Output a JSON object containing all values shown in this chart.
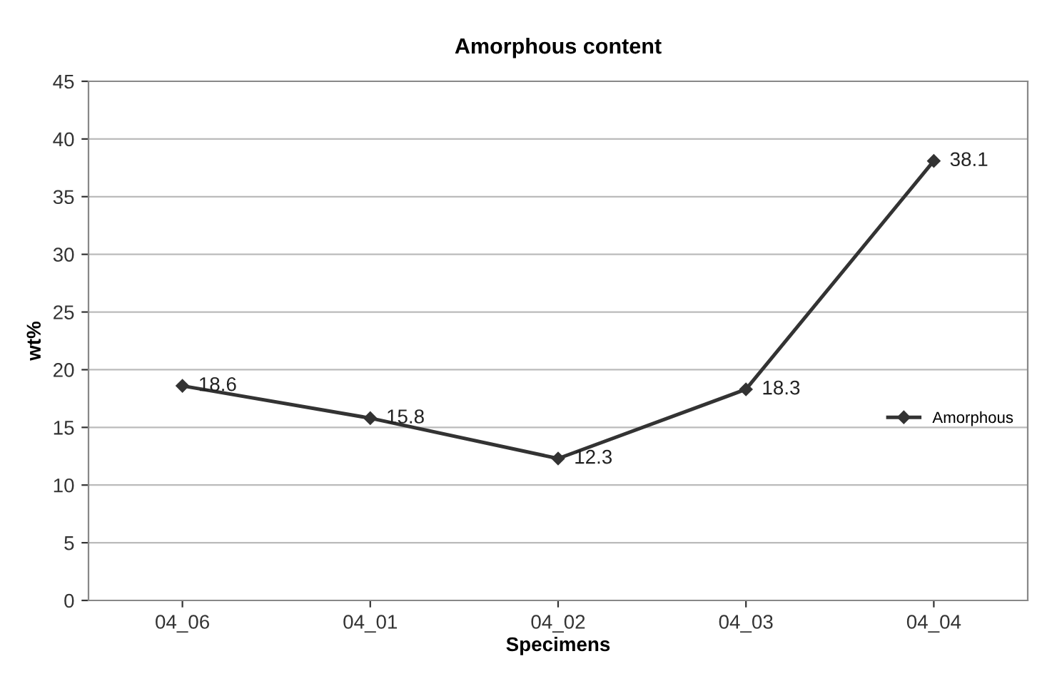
{
  "chart_data": {
    "type": "line",
    "title": "Amorphous content",
    "xlabel": "Specimens",
    "ylabel": "wt%",
    "categories": [
      "04_06",
      "04_01",
      "04_02",
      "04_03",
      "04_04"
    ],
    "series": [
      {
        "name": "Amorphous",
        "color": "#333333",
        "values": [
          18.6,
          15.8,
          12.3,
          18.3,
          38.1
        ]
      }
    ],
    "ylim": [
      0,
      45
    ],
    "yticks": [
      0,
      5,
      10,
      15,
      20,
      25,
      30,
      35,
      40,
      45
    ],
    "grid": "y",
    "legend": "right",
    "marker": "diamond",
    "line_style": "solid",
    "data_labels": true
  }
}
